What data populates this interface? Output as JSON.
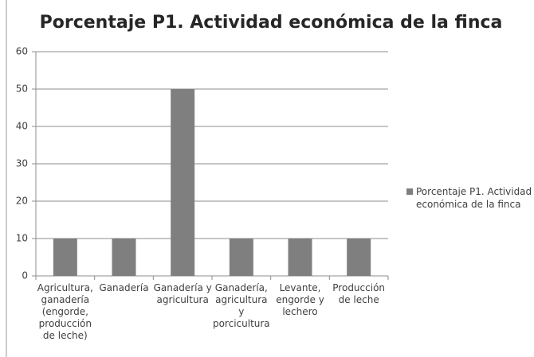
{
  "chart_data": {
    "type": "bar",
    "title": "Porcentaje P1. Actividad económica de la finca",
    "categories": [
      "Agricultura, ganadería (engorde, producción de leche)",
      "Ganadería",
      "Ganadería y agricultura",
      "Ganadería, agricultura y porcicultura",
      "Levante, engorde y lechero",
      "Producción de leche"
    ],
    "series": [
      {
        "name": "Porcentaje P1. Actividad económica de la finca",
        "color": "#7f7f7f",
        "values": [
          10,
          10,
          50,
          10,
          10,
          10
        ]
      }
    ],
    "ylim": [
      0,
      60
    ],
    "yticks": [
      0,
      10,
      20,
      30,
      40,
      50,
      60
    ],
    "grid": true,
    "legend": "right"
  }
}
